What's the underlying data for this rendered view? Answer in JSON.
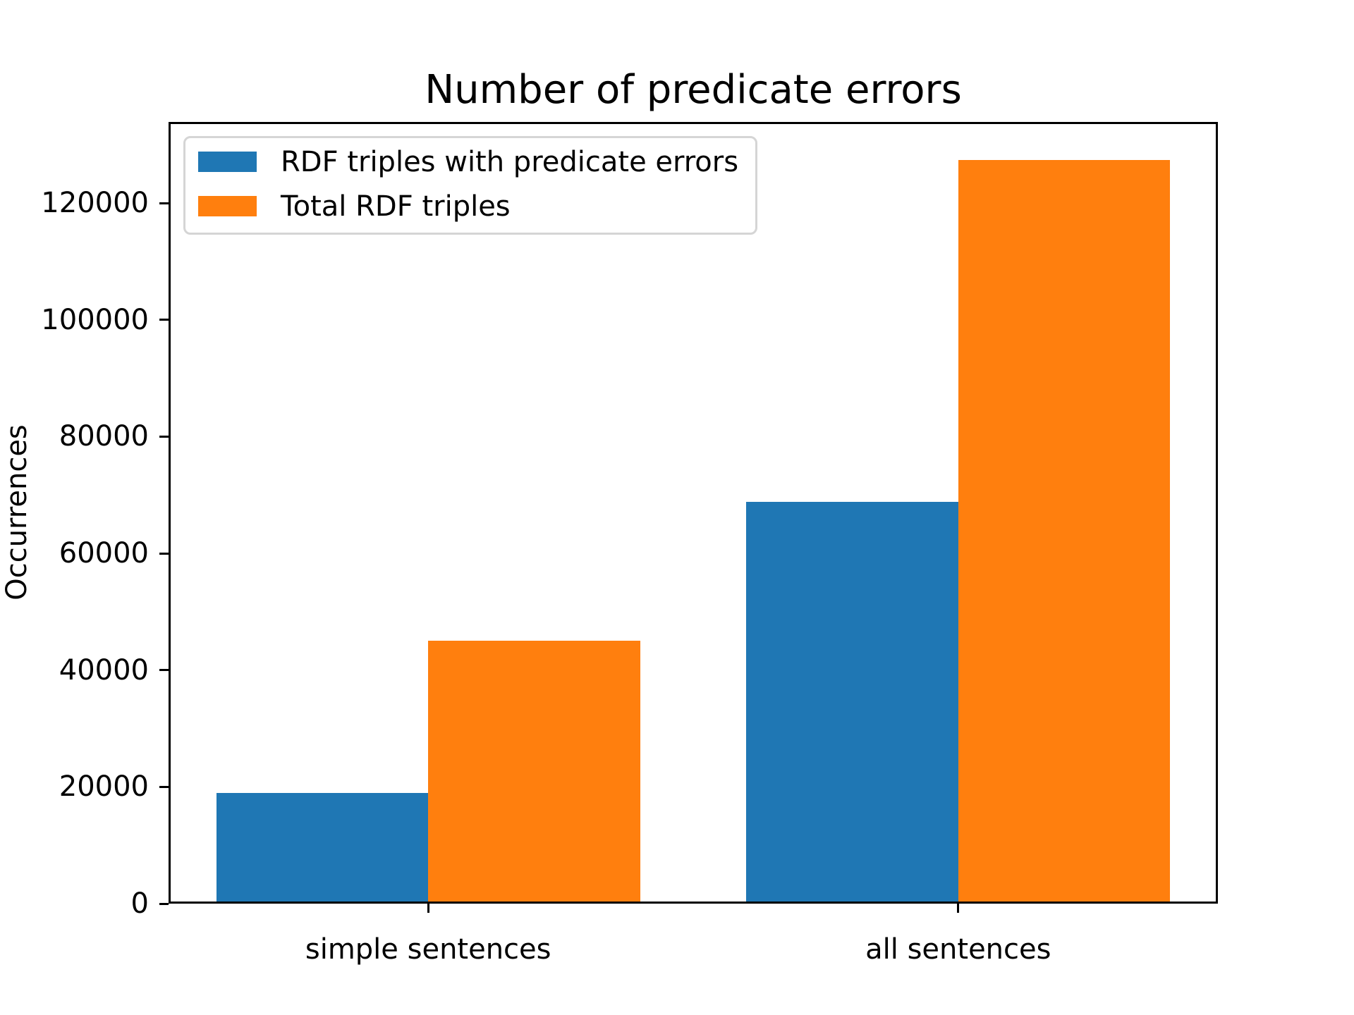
{
  "chart_data": {
    "type": "bar",
    "title": "Number of predicate errors",
    "xlabel": "",
    "ylabel": "Occurrences",
    "categories": [
      "simple sentences",
      "all sentences"
    ],
    "series": [
      {
        "name": "RDF triples with predicate errors",
        "color": "#1f77b4",
        "values": [
          19000,
          68800
        ]
      },
      {
        "name": "Total RDF triples",
        "color": "#ff7f0e",
        "values": [
          45000,
          127400
        ]
      }
    ],
    "yticks": [
      0,
      20000,
      40000,
      60000,
      80000,
      100000,
      120000
    ],
    "ylim": [
      0,
      133900
    ],
    "xlim": [
      -0.49,
      1.49
    ],
    "bar_width": 0.4,
    "grid": false,
    "legend": {
      "position": "upper left",
      "entries": [
        "RDF triples with predicate errors",
        "Total RDF triples"
      ]
    }
  },
  "colors": {
    "series_blue": "#1f77b4",
    "series_orange": "#ff7f0e",
    "axis": "#000000",
    "legend_border": "#d5d5d5",
    "background": "#ffffff"
  }
}
